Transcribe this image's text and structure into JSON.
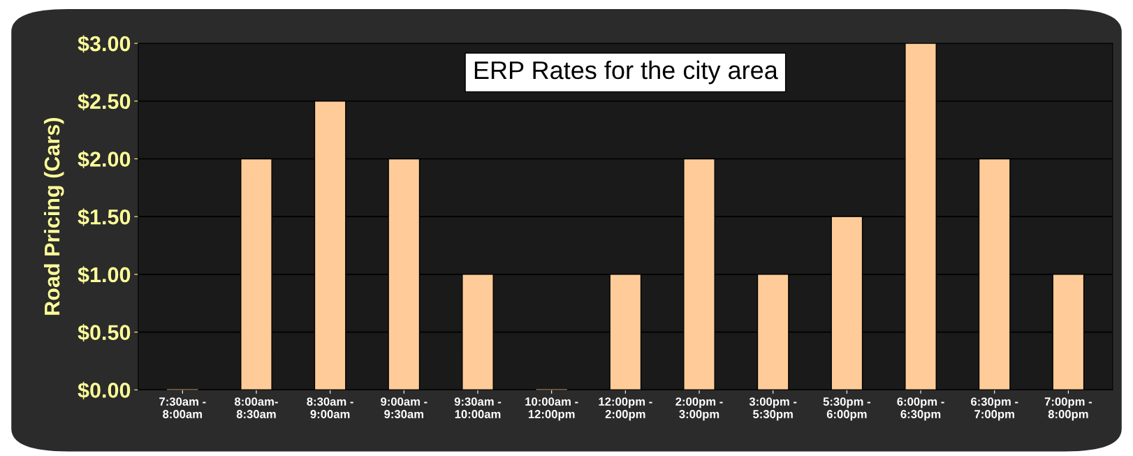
{
  "chart_data": {
    "type": "bar",
    "title": "ERP Rates for the city area",
    "ylabel": "Road Pricing (Cars)",
    "categories": [
      "7:30am -\n8:00am",
      "8:00am-\n8:30am",
      "8:30am -\n9:00am",
      "9:00am -\n9:30am",
      "9:30am -\n10:00am",
      "10:00am -\n12:00pm",
      "12:00pm -\n2:00pm",
      "2:00pm -\n3:00pm",
      "3:00pm -\n5:30pm",
      "5:30pm -\n6:00pm",
      "6:00pm -\n6:30pm",
      "6:30pm -\n7:00pm",
      "7:00pm -\n8:00pm"
    ],
    "values": [
      0,
      2,
      2.5,
      2,
      1,
      0,
      1,
      2,
      1,
      1.5,
      3,
      2,
      1
    ],
    "color": "#ffcc99",
    "ylim": [
      0,
      3
    ],
    "yticks": [
      {
        "value": 0,
        "label": "$0.00"
      },
      {
        "value": 0.5,
        "label": "$0.50"
      },
      {
        "value": 1,
        "label": "$1.00"
      },
      {
        "value": 1.5,
        "label": "$1.50"
      },
      {
        "value": 2,
        "label": "$2.00"
      },
      {
        "value": 2.5,
        "label": "$2.50"
      },
      {
        "value": 3,
        "label": "$3.00"
      }
    ],
    "grid": "y",
    "legend": false
  }
}
